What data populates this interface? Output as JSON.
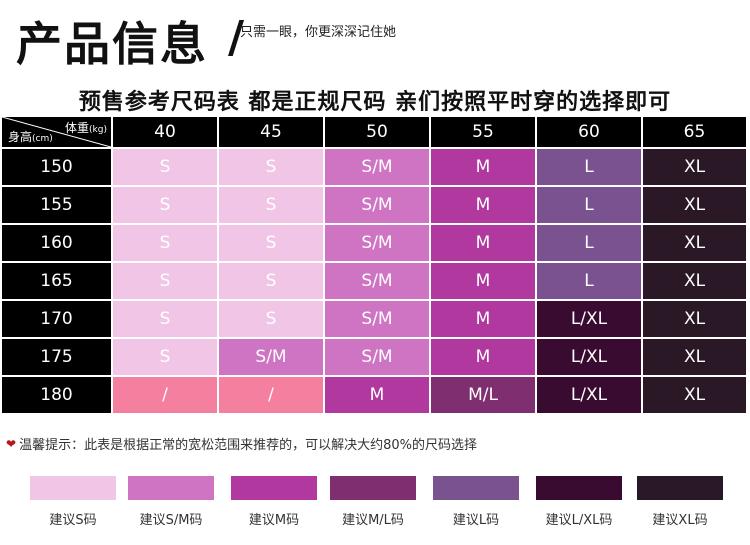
{
  "header": {
    "title": "产品信息",
    "separator": "/",
    "tagline": "只需一眼，你更深深记住她",
    "subtitle": "预售参考尺码表 都是正规尺码 亲们按照平时穿的选择即可"
  },
  "table": {
    "corner_weight": "体重",
    "corner_weight_unit": "(kg)",
    "corner_height": "身高",
    "corner_height_unit": "(cm)",
    "weights": [
      "40",
      "45",
      "50",
      "55",
      "60",
      "65"
    ],
    "rows": [
      {
        "height": "150",
        "sizes": [
          "S",
          "S",
          "S/M",
          "M",
          "L",
          "XL"
        ]
      },
      {
        "height": "155",
        "sizes": [
          "S",
          "S",
          "S/M",
          "M",
          "L",
          "XL"
        ]
      },
      {
        "height": "160",
        "sizes": [
          "S",
          "S",
          "S/M",
          "M",
          "L",
          "XL"
        ]
      },
      {
        "height": "165",
        "sizes": [
          "S",
          "S",
          "S/M",
          "M",
          "L",
          "XL"
        ]
      },
      {
        "height": "170",
        "sizes": [
          "S",
          "S",
          "S/M",
          "M",
          "L/XL",
          "XL"
        ]
      },
      {
        "height": "175",
        "sizes": [
          "S",
          "S/M",
          "S/M",
          "M",
          "L/XL",
          "XL"
        ]
      },
      {
        "height": "180",
        "sizes": [
          "/",
          "/",
          "M",
          "M/L",
          "L/XL",
          "XL"
        ]
      }
    ],
    "size_colors": {
      "S": "#f1c5e6",
      "S/M": "#cf74c3",
      "M": "#b0389e",
      "M/L": "#7f2f70",
      "L": "#7a5290",
      "L/XL": "#3a0b30",
      "XL": "#2a1826",
      "/": "#f47f9e"
    }
  },
  "note": {
    "icon": "heart-icon",
    "text": "温馨提示：此表是根据正常的宽松范围来推荐的，可以解决大约80%的尺码选择"
  },
  "legend": [
    {
      "label": "建议S码",
      "color": "#f1c5e6"
    },
    {
      "label": "建议S/M码",
      "color": "#cf74c3"
    },
    {
      "label": "建议M码",
      "color": "#b0389e"
    },
    {
      "label": "建议M/L码",
      "color": "#7f2f70"
    },
    {
      "label": "建议L码",
      "color": "#7a5290"
    },
    {
      "label": "建议L/XL码",
      "color": "#3a0b30"
    },
    {
      "label": "建议XL码",
      "color": "#2a1826"
    }
  ]
}
